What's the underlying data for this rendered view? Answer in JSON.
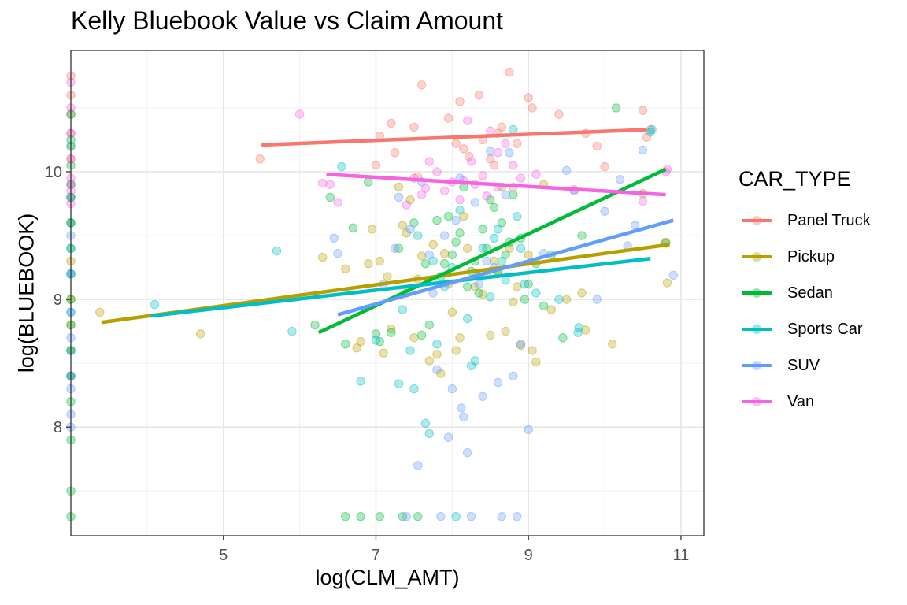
{
  "chart_data": {
    "type": "scatter",
    "title": "Kelly Bluebook Value vs Claim Amount",
    "xlabel": "log(CLM_AMT)",
    "ylabel": "log(BLUEBOOK)",
    "xlim": [
      3.0,
      11.3
    ],
    "ylim": [
      7.15,
      10.95
    ],
    "x_ticks": [
      5,
      7,
      9,
      11
    ],
    "y_ticks": [
      8,
      9,
      10
    ],
    "x_minor": [
      4,
      6,
      8,
      10
    ],
    "y_minor": [
      7.5,
      8.5,
      9.5,
      10.5
    ],
    "grid": true,
    "legend": {
      "title": "CAR_TYPE",
      "position": "right",
      "items": [
        {
          "label": "Panel Truck",
          "color": "#F8766D"
        },
        {
          "label": "Pickup",
          "color": "#B79F00"
        },
        {
          "label": "Sedan",
          "color": "#00BA38"
        },
        {
          "label": "Sports Car",
          "color": "#00BFC4"
        },
        {
          "label": "SUV",
          "color": "#619CFF"
        },
        {
          "label": "Van",
          "color": "#F564E3"
        }
      ]
    },
    "trend_lines": [
      {
        "name": "Panel Truck",
        "x": [
          5.5,
          10.55
        ],
        "y": [
          10.21,
          10.33
        ]
      },
      {
        "name": "Pickup",
        "x": [
          3.4,
          10.85
        ],
        "y": [
          8.82,
          9.43
        ]
      },
      {
        "name": "Sedan",
        "x": [
          6.25,
          10.8
        ],
        "y": [
          8.74,
          10.02
        ]
      },
      {
        "name": "Sports Car",
        "x": [
          4.05,
          10.6
        ],
        "y": [
          8.87,
          9.32
        ]
      },
      {
        "name": "SUV",
        "x": [
          6.5,
          10.9
        ],
        "y": [
          8.88,
          9.62
        ]
      },
      {
        "name": "Van",
        "x": [
          6.35,
          10.8
        ],
        "y": [
          9.98,
          9.82
        ]
      }
    ],
    "points": [
      {
        "name": "Panel Truck",
        "x": [
          3.0,
          3.0,
          3.0,
          3.0,
          3.0,
          3.0,
          3.0,
          5.48,
          7.05,
          7.2,
          7.5,
          8.1,
          8.22,
          8.35,
          8.5,
          8.65,
          8.85,
          9.05,
          9.4,
          9.75,
          9.9,
          10.0,
          10.5,
          10.55,
          10.6,
          7.25,
          7.6,
          7.95,
          8.55,
          8.75,
          9.0,
          7.0,
          8.05,
          8.8,
          7.55,
          8.15,
          8.4,
          8.6
        ],
        "y": [
          10.75,
          10.6,
          10.45,
          10.3,
          10.1,
          9.9,
          9.8,
          10.1,
          10.28,
          10.38,
          10.35,
          10.55,
          10.12,
          10.6,
          10.1,
          10.35,
          10.22,
          10.5,
          10.45,
          10.3,
          10.2,
          10.04,
          10.48,
          10.27,
          10.33,
          10.15,
          10.68,
          10.42,
          10.05,
          10.78,
          10.58,
          10.05,
          10.22,
          9.88,
          9.96,
          10.18,
          10.25,
          10.3
        ]
      },
      {
        "name": "Pickup",
        "x": [
          3.0,
          3.0,
          3.0,
          3.0,
          3.0,
          3.0,
          3.0,
          3.0,
          3.38,
          4.7,
          6.3,
          6.6,
          6.75,
          6.8,
          6.9,
          6.95,
          7.05,
          7.1,
          7.15,
          7.2,
          7.3,
          7.35,
          7.4,
          7.5,
          7.55,
          7.6,
          7.7,
          7.75,
          7.8,
          7.85,
          7.9,
          8.0,
          8.05,
          8.1,
          8.2,
          8.3,
          8.4,
          8.5,
          8.55,
          8.6,
          8.7,
          8.75,
          8.8,
          8.85,
          8.9,
          9.0,
          9.05,
          9.1,
          9.2,
          9.5,
          9.7,
          9.75,
          10.1,
          10.5,
          10.8,
          10.82,
          7.45,
          7.95,
          8.15,
          8.45,
          8.65,
          9.3
        ],
        "y": [
          10.2,
          9.9,
          9.6,
          9.3,
          9.0,
          8.8,
          8.6,
          8.4,
          8.9,
          8.73,
          9.33,
          9.24,
          8.62,
          8.67,
          9.28,
          9.55,
          9.3,
          8.58,
          9.18,
          8.77,
          9.88,
          9.58,
          9.52,
          8.7,
          9.16,
          9.34,
          8.52,
          9.43,
          8.57,
          8.42,
          9.36,
          8.9,
          8.6,
          8.7,
          9.4,
          9.1,
          9.04,
          8.72,
          9.3,
          9.2,
          8.75,
          9.4,
          8.98,
          9.1,
          8.64,
          9.35,
          8.6,
          8.51,
          9.9,
          9.0,
          9.05,
          8.76,
          8.65,
          9.83,
          9.45,
          9.13,
          9.78,
          9.12,
          9.65,
          9.2,
          9.88,
          8.92
        ]
      },
      {
        "name": "Sedan",
        "x": [
          3.0,
          3.0,
          3.0,
          3.0,
          3.0,
          3.0,
          3.0,
          3.0,
          3.0,
          3.0,
          3.0,
          3.0,
          3.0,
          3.0,
          3.0,
          6.2,
          6.4,
          6.6,
          6.7,
          6.9,
          7.0,
          7.05,
          7.2,
          7.3,
          7.4,
          7.6,
          7.7,
          7.8,
          7.9,
          8.0,
          8.1,
          8.2,
          8.3,
          8.4,
          8.5,
          8.6,
          8.65,
          8.7,
          8.75,
          8.8,
          8.9,
          9.0,
          9.1,
          9.3,
          9.45,
          9.7,
          10.15,
          10.8,
          7.5,
          7.85,
          8.05,
          8.25,
          8.55,
          8.95,
          7.65,
          7.95,
          8.45,
          8.15,
          8.35,
          9.2,
          6.6,
          6.8,
          7.05,
          7.35,
          7.55
        ],
        "y": [
          10.45,
          10.25,
          10.05,
          9.8,
          9.6,
          9.4,
          9.2,
          9.0,
          8.8,
          8.6,
          8.4,
          8.2,
          7.9,
          7.5,
          7.3,
          8.8,
          9.8,
          8.65,
          9.56,
          9.92,
          8.73,
          8.67,
          8.74,
          9.4,
          9.05,
          8.72,
          8.8,
          9.62,
          9.28,
          9.35,
          9.52,
          9.1,
          9.3,
          9.55,
          9.78,
          9.22,
          9.6,
          9.35,
          9.45,
          9.82,
          9.48,
          9.12,
          9.28,
          9.35,
          8.7,
          9.5,
          10.5,
          9.44,
          9.6,
          9.18,
          9.45,
          9.22,
          9.72,
          9.0,
          9.28,
          9.65,
          9.4,
          9.88,
          9.05,
          8.95,
          7.3,
          7.3,
          7.3,
          7.3,
          7.3
        ]
      },
      {
        "name": "Sports Car",
        "x": [
          3.0,
          3.0,
          3.0,
          3.0,
          3.0,
          3.0,
          3.0,
          3.0,
          4.1,
          5.7,
          5.9,
          6.55,
          6.8,
          7.0,
          7.3,
          7.45,
          7.5,
          7.55,
          7.65,
          7.7,
          7.8,
          7.9,
          8.0,
          8.1,
          8.2,
          8.3,
          8.35,
          8.4,
          8.5,
          8.6,
          8.65,
          8.7,
          8.8,
          8.85,
          8.9,
          9.1,
          9.4,
          9.65,
          9.66,
          10.6,
          10.62,
          7.35,
          7.75,
          8.25,
          8.55,
          8.95,
          8.05
        ],
        "y": [
          10.2,
          9.8,
          9.6,
          9.4,
          9.2,
          8.9,
          8.6,
          8.4,
          8.96,
          9.38,
          8.75,
          10.04,
          8.36,
          8.68,
          8.34,
          8.6,
          8.3,
          9.5,
          8.03,
          7.95,
          8.65,
          9.1,
          9.25,
          9.7,
          8.85,
          8.52,
          9.18,
          9.4,
          9.02,
          9.55,
          9.3,
          9.15,
          10.33,
          9.65,
          9.4,
          9.05,
          9.0,
          8.74,
          8.78,
          10.31,
          10.33,
          8.92,
          9.3,
          8.48,
          9.48,
          9.12,
          7.3
        ]
      },
      {
        "name": "SUV",
        "x": [
          3.0,
          3.0,
          3.0,
          3.0,
          3.0,
          3.0,
          3.0,
          3.0,
          3.0,
          6.45,
          6.5,
          7.1,
          7.3,
          7.45,
          7.6,
          7.7,
          7.8,
          7.9,
          7.95,
          8.0,
          8.1,
          8.12,
          8.15,
          8.2,
          8.3,
          8.4,
          8.45,
          8.5,
          8.6,
          8.7,
          8.8,
          8.9,
          9.0,
          9.2,
          9.5,
          9.6,
          9.9,
          10.0,
          10.2,
          10.3,
          10.4,
          10.5,
          10.9,
          7.55,
          7.75,
          8.05,
          8.35,
          8.55,
          8.75,
          7.25,
          7.4,
          7.85,
          8.25,
          8.65,
          8.85
        ],
        "y": [
          9.9,
          9.5,
          9.2,
          8.9,
          8.7,
          8.4,
          8.3,
          8.1,
          8.0,
          9.48,
          9.36,
          9.12,
          9.8,
          9.55,
          9.92,
          9.35,
          8.45,
          9.5,
          7.92,
          8.3,
          9.95,
          8.15,
          8.08,
          7.8,
          9.76,
          8.24,
          9.3,
          10.16,
          8.35,
          9.82,
          8.4,
          8.65,
          7.98,
          9.36,
          10.01,
          9.85,
          9.0,
          9.69,
          9.94,
          9.42,
          9.58,
          10.17,
          9.19,
          7.7,
          9.05,
          9.62,
          9.12,
          9.25,
          10.15,
          9.4,
          7.3,
          7.3,
          7.3,
          7.3,
          7.3
        ]
      },
      {
        "name": "Van",
        "x": [
          3.0,
          3.0,
          3.0,
          3.0,
          3.0,
          3.0,
          3.0,
          6.0,
          6.3,
          6.5,
          7.5,
          7.6,
          7.7,
          7.8,
          7.9,
          8.0,
          8.1,
          8.2,
          8.25,
          8.3,
          8.4,
          8.5,
          8.6,
          8.7,
          8.8,
          8.9,
          9.6,
          10.5,
          10.8,
          10.82,
          7.4,
          7.65,
          8.15,
          8.45,
          8.6,
          9.1,
          6.4
        ],
        "y": [
          10.7,
          10.5,
          10.3,
          10.1,
          9.95,
          9.85,
          9.75,
          10.45,
          9.91,
          9.76,
          9.95,
          9.82,
          10.08,
          10.0,
          9.85,
          9.92,
          9.78,
          10.4,
          10.08,
          9.9,
          9.97,
          10.32,
          9.88,
          10.22,
          10.05,
          9.95,
          9.86,
          9.77,
          10.0,
          10.02,
          9.74,
          9.87,
          9.93,
          9.81,
          10.15,
          9.98,
          9.9
        ]
      }
    ]
  }
}
